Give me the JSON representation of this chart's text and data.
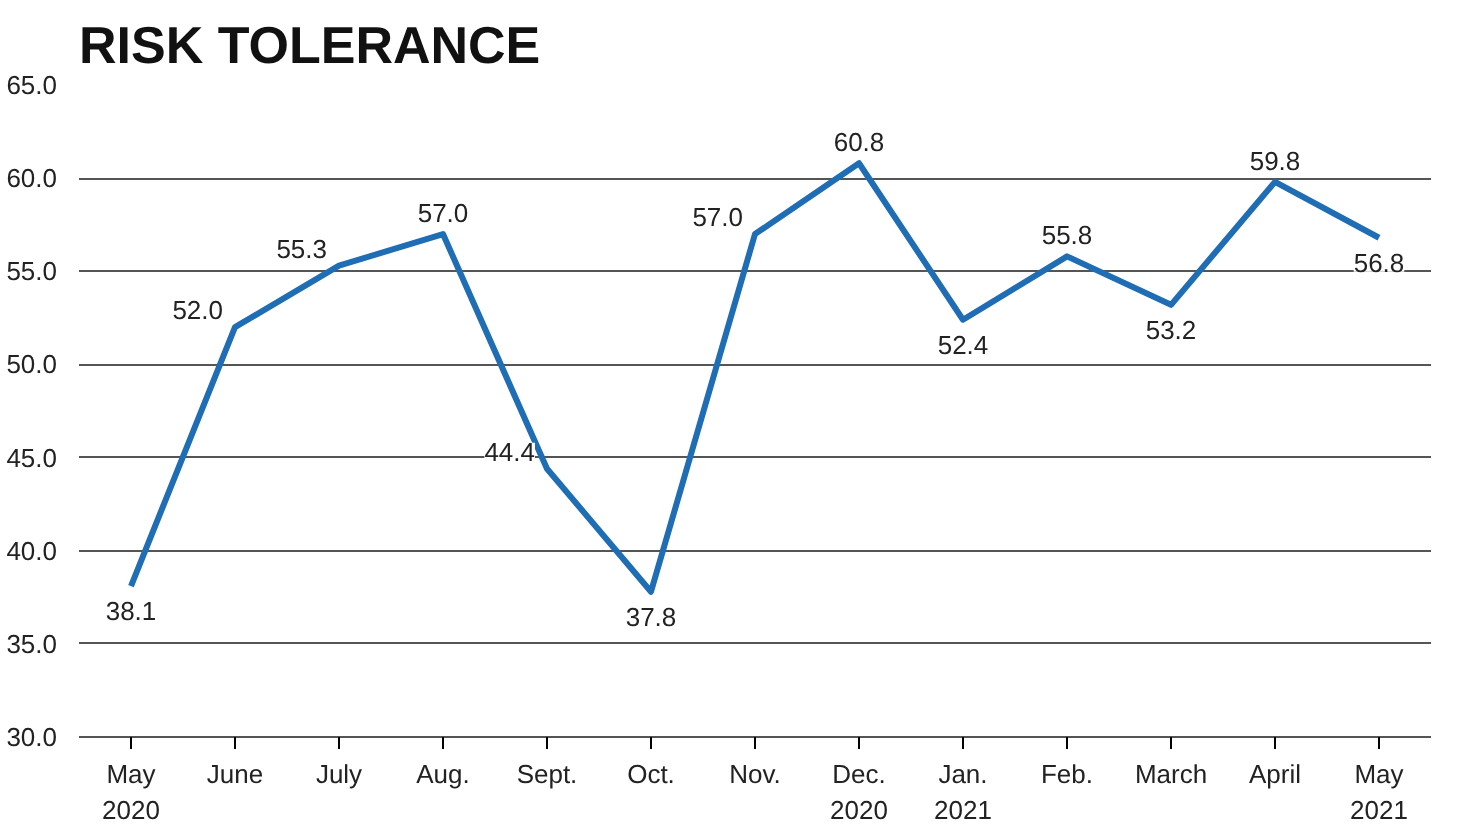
{
  "chart_data": {
    "type": "line",
    "title": "RISK TOLERANCE",
    "categories": [
      "May\n2020",
      "June",
      "July",
      "Aug.",
      "Sept.",
      "Oct.",
      "Nov.",
      "Dec.\n2020",
      "Jan.\n2021",
      "Feb.",
      "March",
      "April",
      "May\n2021"
    ],
    "series": [
      {
        "color": "#1f6db5",
        "values": [
          38.1,
          52.0,
          55.3,
          57.0,
          44.4,
          37.8,
          57.0,
          60.8,
          52.4,
          55.8,
          53.2,
          59.8,
          56.8
        ],
        "value_labels": [
          "38.1",
          "52.0",
          "55.3",
          "57.0",
          "44.4",
          "37.8",
          "57.0",
          "60.8",
          "52.4",
          "55.8",
          "53.2",
          "59.8",
          "56.8"
        ]
      }
    ],
    "ylim": [
      30,
      65
    ],
    "yticks": [
      {
        "value": 30,
        "label": "30.0"
      },
      {
        "value": 35,
        "label": "35.0"
      },
      {
        "value": 40,
        "label": "40.0"
      },
      {
        "value": 45,
        "label": "45.0"
      },
      {
        "value": 50,
        "label": "50.0"
      },
      {
        "value": 55,
        "label": "55.0"
      },
      {
        "value": 60,
        "label": "60.0"
      },
      {
        "value": 65,
        "label": "65.0"
      }
    ],
    "grid": "y",
    "marker": "none",
    "line_style": "solid"
  }
}
